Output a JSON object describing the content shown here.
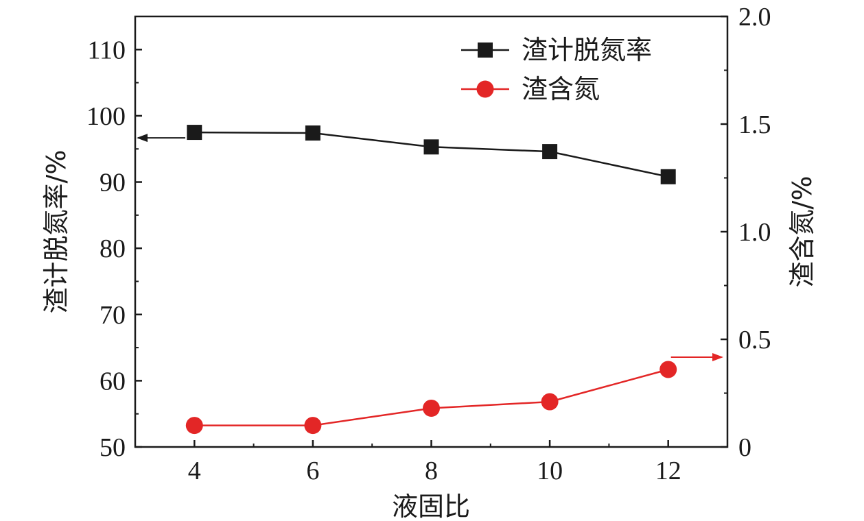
{
  "chart_data": {
    "type": "line",
    "x": [
      4,
      6,
      8,
      10,
      12
    ],
    "xlabel": "液固比",
    "xlim": [
      3,
      13
    ],
    "xticks": [
      4,
      6,
      8,
      10,
      12
    ],
    "y_left": {
      "label": "渣计脱氮率/%",
      "lim": [
        50,
        115
      ],
      "ticks": [
        50,
        60,
        70,
        80,
        90,
        100,
        110
      ]
    },
    "y_right": {
      "label": "渣含氮/%",
      "lim": [
        0,
        2.0
      ],
      "ticks": [
        "0",
        "0.5",
        "1.0",
        "1.5",
        "2.0"
      ]
    },
    "series": [
      {
        "name": "渣计脱氮率",
        "axis": "left",
        "marker": "square",
        "color": "#1a1a1a",
        "values": [
          97.5,
          97.4,
          95.3,
          94.6,
          90.8
        ]
      },
      {
        "name": "渣含氮",
        "axis": "right",
        "marker": "circle",
        "color": "#e32626",
        "values": [
          0.1,
          0.1,
          0.18,
          0.21,
          0.36
        ]
      }
    ],
    "legend": "top-right",
    "grid": false
  }
}
